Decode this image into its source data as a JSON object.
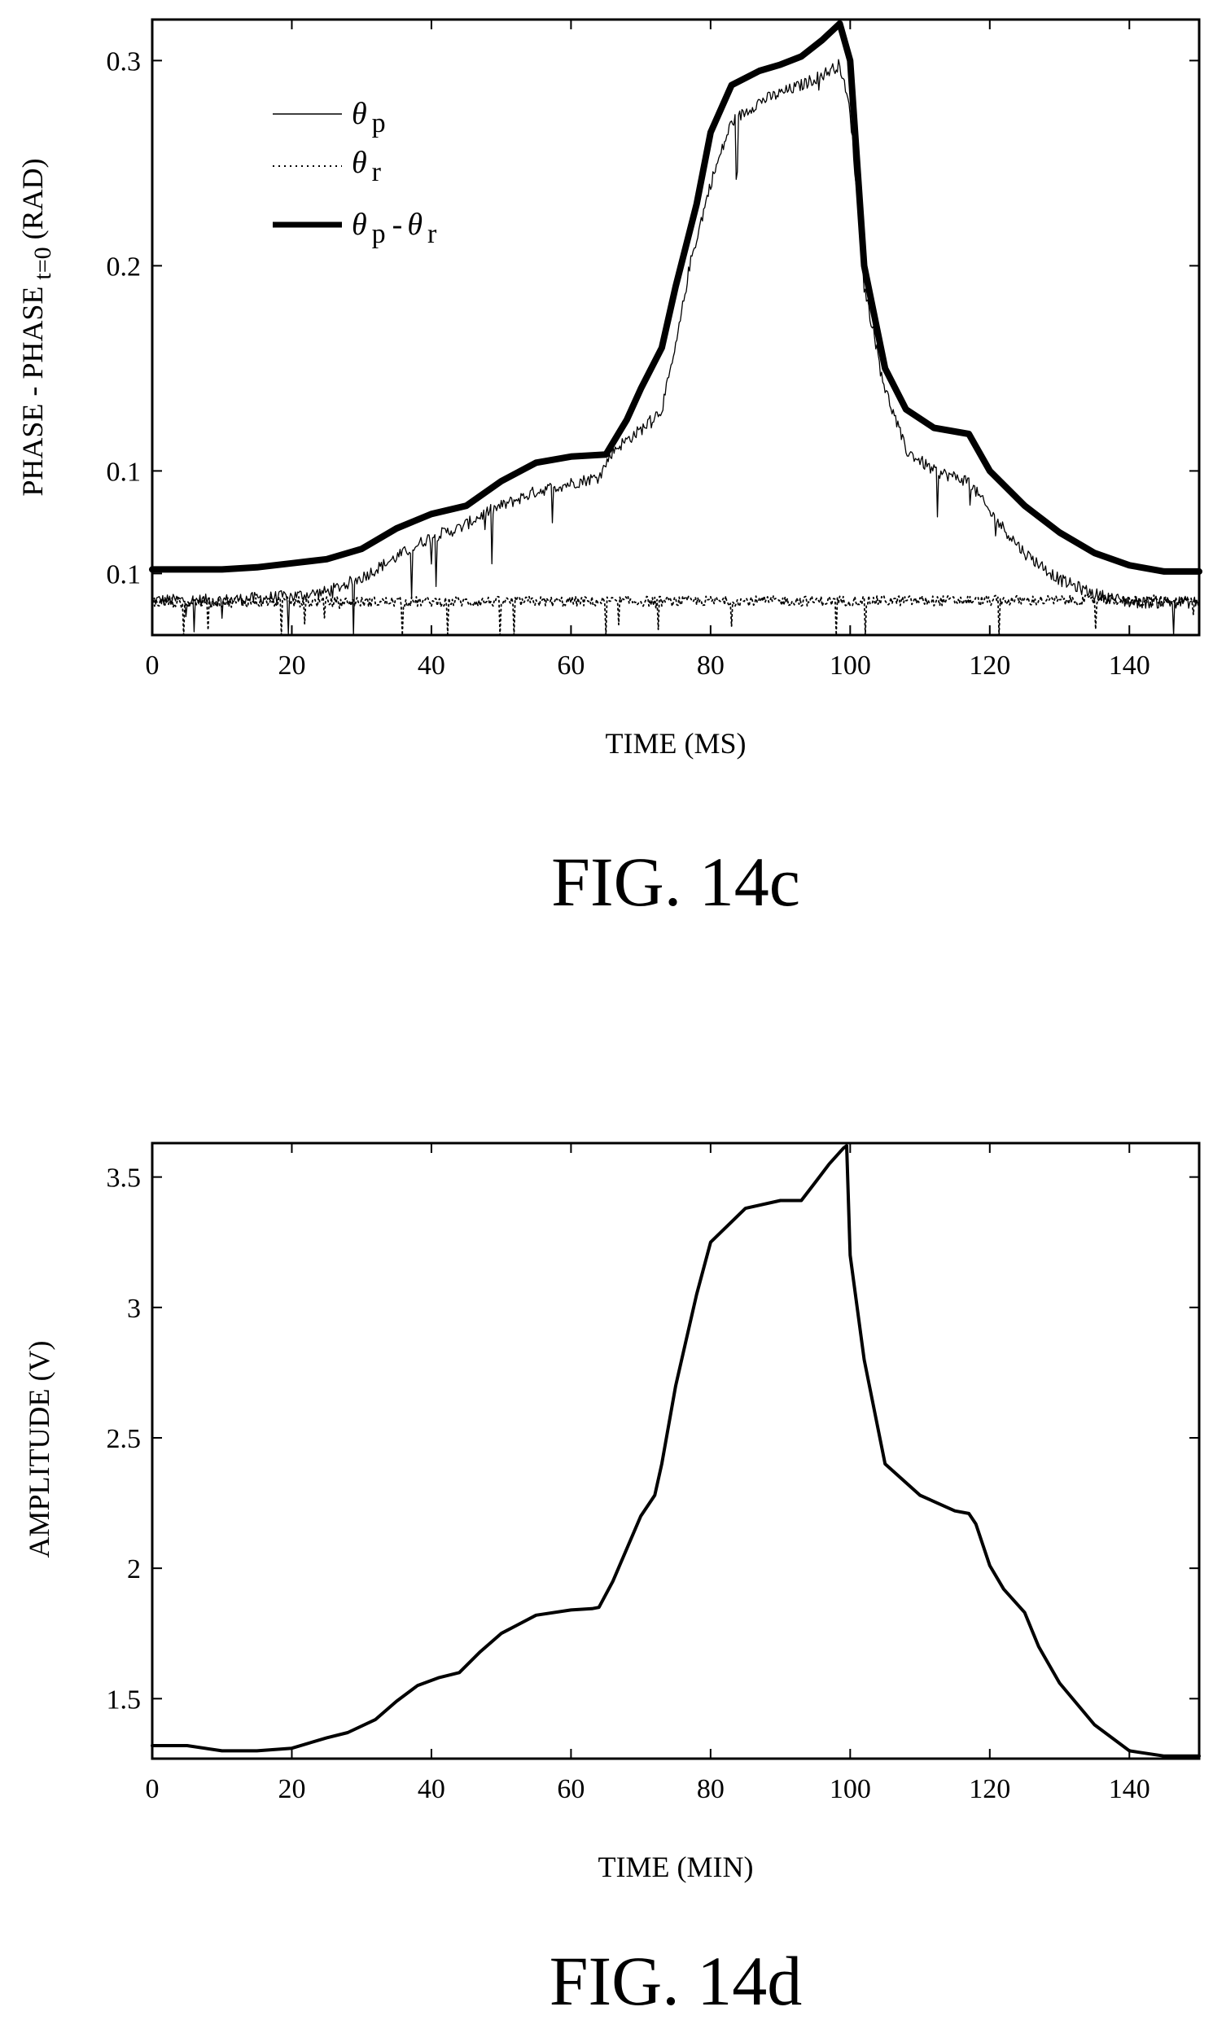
{
  "chart_data": [
    {
      "type": "line",
      "title": "",
      "caption": "FIG. 14c",
      "xlabel": "TIME (MS)",
      "ylabel": {
        "main": "PHASE - PHASE",
        "sub": "t=0",
        "unit": " (RAD)"
      },
      "xlim": [
        0,
        150
      ],
      "ylim": [
        0.02,
        0.32
      ],
      "x_ticks": [
        0,
        20,
        40,
        60,
        80,
        100,
        120,
        140
      ],
      "y_ticks": [
        {
          "value": 0.3,
          "label": "0.3"
        },
        {
          "value": 0.2,
          "label": "0.2"
        },
        {
          "value": 0.1,
          "label": "0.1"
        },
        {
          "value": 0.05,
          "label": "0.1"
        }
      ],
      "legend_position": "top-left",
      "series": [
        {
          "name": "θp",
          "legend": {
            "sym": "θ",
            "sub": "p"
          },
          "style": "thin",
          "color": "#000000",
          "x": [
            0,
            10,
            20,
            25,
            30,
            35,
            40,
            44,
            48,
            55,
            60,
            64,
            66,
            70,
            73,
            75,
            77,
            80,
            83,
            87,
            90,
            93,
            96,
            98.5,
            100,
            102,
            105,
            108,
            112,
            117,
            120,
            125,
            130,
            135,
            140,
            150
          ],
          "y": [
            0.037,
            0.037,
            0.039,
            0.041,
            0.048,
            0.058,
            0.068,
            0.072,
            0.08,
            0.09,
            0.094,
            0.097,
            0.11,
            0.12,
            0.13,
            0.16,
            0.2,
            0.24,
            0.27,
            0.28,
            0.284,
            0.288,
            0.293,
            0.298,
            0.275,
            0.19,
            0.14,
            0.11,
            0.1,
            0.095,
            0.08,
            0.06,
            0.047,
            0.04,
            0.036,
            0.036
          ]
        },
        {
          "name": "θr",
          "legend": {
            "sym": "θ",
            "sub": "r"
          },
          "style": "dotted",
          "color": "#000000",
          "x": [
            0,
            150
          ],
          "y": [
            0.036,
            0.037
          ]
        },
        {
          "name": "θp-θr",
          "legend": {
            "sym": "θ",
            "sub": "p",
            "sym2": "θ",
            "sub2": "r"
          },
          "style": "thick",
          "color": "#000000",
          "x": [
            0,
            10,
            15,
            20,
            25,
            30,
            35,
            40,
            45,
            50,
            55,
            60,
            65,
            68,
            70,
            73,
            75,
            78,
            80,
            83,
            87,
            90,
            93,
            96,
            98.5,
            100,
            102,
            105,
            108,
            112,
            117,
            118,
            120,
            125,
            130,
            135,
            140,
            145,
            150
          ],
          "y": [
            0.052,
            0.052,
            0.053,
            0.055,
            0.057,
            0.062,
            0.072,
            0.079,
            0.083,
            0.095,
            0.104,
            0.107,
            0.108,
            0.125,
            0.14,
            0.16,
            0.19,
            0.23,
            0.265,
            0.288,
            0.295,
            0.298,
            0.302,
            0.31,
            0.318,
            0.3,
            0.2,
            0.15,
            0.13,
            0.121,
            0.118,
            0.112,
            0.1,
            0.083,
            0.07,
            0.06,
            0.054,
            0.051,
            0.051
          ]
        }
      ]
    },
    {
      "type": "line",
      "title": "",
      "caption": "FIG. 14d",
      "xlabel": "TIME (MIN)",
      "ylabel": "AMPLITUDE (V)",
      "xlim": [
        0,
        150
      ],
      "ylim": [
        1.27,
        3.63
      ],
      "x_ticks": [
        0,
        20,
        40,
        60,
        80,
        100,
        120,
        140
      ],
      "y_ticks": [
        {
          "value": 3.5,
          "label": "3.5"
        },
        {
          "value": 3,
          "label": "3"
        },
        {
          "value": 2.5,
          "label": "2.5"
        },
        {
          "value": 2,
          "label": "2"
        },
        {
          "value": 1.5,
          "label": "1.5"
        }
      ],
      "series": [
        {
          "color": "#000000",
          "x": [
            0,
            5,
            10,
            15,
            20,
            25,
            28,
            32,
            35,
            38,
            41,
            44,
            47,
            50,
            55,
            60,
            63,
            64,
            66,
            70,
            72,
            73,
            75,
            78,
            80,
            85,
            90,
            93,
            95,
            97,
            99,
            99.5,
            100,
            102,
            105,
            110,
            115,
            117,
            118,
            120,
            122,
            125,
            127,
            130,
            135,
            140,
            145,
            150
          ],
          "y": [
            1.32,
            1.32,
            1.3,
            1.3,
            1.31,
            1.35,
            1.37,
            1.42,
            1.49,
            1.55,
            1.58,
            1.6,
            1.68,
            1.75,
            1.82,
            1.84,
            1.845,
            1.85,
            1.95,
            2.2,
            2.28,
            2.4,
            2.7,
            3.05,
            3.25,
            3.38,
            3.41,
            3.41,
            3.48,
            3.55,
            3.61,
            3.62,
            3.2,
            2.8,
            2.4,
            2.28,
            2.22,
            2.21,
            2.17,
            2.01,
            1.92,
            1.83,
            1.7,
            1.56,
            1.4,
            1.3,
            1.28,
            1.28
          ]
        }
      ]
    }
  ]
}
